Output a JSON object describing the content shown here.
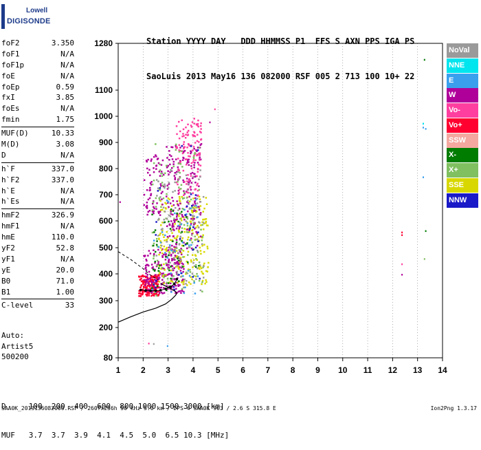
{
  "logo": {
    "line1": "Lowell",
    "line2": "DIGISONDE"
  },
  "header": {
    "labels": [
      "Station",
      "YYYY",
      "DAY",
      "DDD",
      "HHMMSS",
      "P1",
      "FFS",
      "S",
      "AXN",
      "PPS",
      "IGA",
      "PS"
    ],
    "values": [
      "SaoLuis",
      "2013",
      "May16",
      "136",
      "082000",
      "RSF",
      "005",
      "2",
      "713",
      "100",
      "10+",
      "22"
    ]
  },
  "params": {
    "group1": [
      {
        "name": "foF2",
        "value": "3.350"
      },
      {
        "name": "foF1",
        "value": "N/A"
      },
      {
        "name": "foF1p",
        "value": "N/A"
      },
      {
        "name": "foE",
        "value": "N/A"
      },
      {
        "name": "foEp",
        "value": "0.59"
      },
      {
        "name": "fxI",
        "value": "3.85"
      },
      {
        "name": "foEs",
        "value": "N/A"
      },
      {
        "name": "fmin",
        "value": "1.75"
      }
    ],
    "group2": [
      {
        "name": "MUF(D)",
        "value": "10.33"
      },
      {
        "name": "M(D)",
        "value": "3.08"
      },
      {
        "name": "D",
        "value": "N/A"
      }
    ],
    "group3": [
      {
        "name": "h`F",
        "value": "337.0"
      },
      {
        "name": "h`F2",
        "value": "337.0"
      },
      {
        "name": "h`E",
        "value": "N/A"
      },
      {
        "name": "h`Es",
        "value": "N/A"
      }
    ],
    "group4": [
      {
        "name": "hmF2",
        "value": "326.9"
      },
      {
        "name": "hmF1",
        "value": "N/A"
      },
      {
        "name": "hmE",
        "value": "110.0"
      },
      {
        "name": "yF2",
        "value": "52.8"
      },
      {
        "name": "yF1",
        "value": "N/A"
      },
      {
        "name": "yE",
        "value": "20.0"
      },
      {
        "name": "B0",
        "value": "71.0"
      },
      {
        "name": "B1",
        "value": "1.00"
      }
    ],
    "group5": [
      {
        "name": "C-level",
        "value": "33"
      }
    ]
  },
  "auto_scaling": {
    "line1": "Auto:",
    "line2": "Artist5",
    "line3": "500200"
  },
  "legend": [
    {
      "label": "NoVal",
      "color": "#9a9a9a"
    },
    {
      "label": "NNE",
      "color": "#00e5ee"
    },
    {
      "label": "E",
      "color": "#3aa0ee"
    },
    {
      "label": "W",
      "color": "#b0009a"
    },
    {
      "label": "Vo-",
      "color": "#ff3fa0"
    },
    {
      "label": "Vo+",
      "color": "#ff0030"
    },
    {
      "label": "SSW",
      "color": "#f4a8a0"
    },
    {
      "label": "X-",
      "color": "#007c00"
    },
    {
      "label": "X+",
      "color": "#80c060"
    },
    {
      "label": "SSE",
      "color": "#d8d800"
    },
    {
      "label": "NNW",
      "color": "#1a1ac8"
    }
  ],
  "footer": {
    "row1_label": "D",
    "row1_values": [
      "100",
      "200",
      "400",
      "600",
      "800",
      "1000",
      "1500",
      "3000",
      "[km]"
    ],
    "row2_label": "MUF",
    "row2_values": [
      "3.7",
      "3.7",
      "3.9",
      "4.1",
      "4.5",
      "5.0",
      "6.5",
      "10.3",
      "[MHz]"
    ],
    "file_line": "SAA0K_2013136082000.RSF / 260fx256h 50 kHz 5.0 km / DPS-4 SAA0K 903 / 2.6 S 315.8 E",
    "version": "Ion2Png 1.3.17"
  },
  "chart_data": {
    "type": "scatter",
    "title": "",
    "xlabel": "",
    "ylabel": "",
    "x_ticks": [
      1,
      2,
      3,
      4,
      5,
      6,
      7,
      8,
      9,
      10,
      11,
      12,
      13,
      14
    ],
    "y_ticks": [
      80,
      200,
      300,
      400,
      500,
      600,
      700,
      800,
      900,
      1000,
      1100,
      1280
    ],
    "xlim": [
      1,
      14
    ],
    "ylim": [
      80,
      1280
    ],
    "grid": "dotted vertical at integer frequencies",
    "ordinary_trace_points": [
      [
        1.9,
        340
      ],
      [
        2.1,
        338
      ],
      [
        2.3,
        337
      ],
      [
        2.5,
        337
      ],
      [
        2.7,
        339
      ],
      [
        2.9,
        344
      ],
      [
        3.1,
        352
      ],
      [
        3.25,
        362
      ],
      [
        3.35,
        380
      ]
    ],
    "profile_curve": [
      [
        1.0,
        220
      ],
      [
        1.5,
        240
      ],
      [
        2.0,
        258
      ],
      [
        2.5,
        272
      ],
      [
        2.9,
        288
      ],
      [
        3.15,
        306
      ],
      [
        3.3,
        320
      ],
      [
        3.35,
        327
      ],
      [
        3.3,
        334
      ],
      [
        3.15,
        342
      ],
      [
        2.95,
        352
      ],
      [
        2.7,
        364
      ]
    ],
    "dashed_profile": [
      [
        1.0,
        485
      ],
      [
        1.5,
        455
      ],
      [
        2.0,
        420
      ],
      [
        2.3,
        395
      ],
      [
        2.6,
        378
      ]
    ],
    "echo_clusters": [
      {
        "xmin": 1.8,
        "xmax": 2.6,
        "ymin": 320,
        "ymax": 400,
        "series": "Vo+",
        "count": 170
      },
      {
        "xmin": 2.0,
        "xmax": 3.6,
        "ymin": 330,
        "ymax": 500,
        "series": "W",
        "count": 220
      },
      {
        "xmin": 2.6,
        "xmax": 4.6,
        "ymin": 360,
        "ymax": 700,
        "series": "SSE",
        "count": 230
      },
      {
        "xmin": 2.9,
        "xmax": 4.3,
        "ymin": 500,
        "ymax": 900,
        "series": "W",
        "count": 200
      },
      {
        "xmin": 3.3,
        "xmax": 4.3,
        "ymin": 700,
        "ymax": 1000,
        "series": "Vo-",
        "count": 120
      },
      {
        "xmin": 2.0,
        "xmax": 2.8,
        "ymin": 620,
        "ymax": 860,
        "series": "W",
        "count": 70
      },
      {
        "xmin": 2.3,
        "xmax": 4.4,
        "ymin": 320,
        "ymax": 900,
        "series": "X+",
        "count": 120
      },
      {
        "xmin": 2.5,
        "xmax": 4.4,
        "ymin": 340,
        "ymax": 800,
        "series": "NoVal",
        "count": 110
      },
      {
        "xmin": 2.3,
        "xmax": 4.2,
        "ymin": 330,
        "ymax": 650,
        "series": "X-",
        "count": 50
      },
      {
        "xmin": 2.3,
        "xmax": 4.2,
        "ymin": 330,
        "ymax": 700,
        "series": "E",
        "count": 40
      },
      {
        "xmin": 2.3,
        "xmax": 4.3,
        "ymin": 340,
        "ymax": 900,
        "series": "NNW",
        "count": 30
      }
    ],
    "isolated_points": [
      {
        "x": 12.35,
        "y": 560,
        "series": "Vo+"
      },
      {
        "x": 12.35,
        "y": 550,
        "series": "Vo+"
      },
      {
        "x": 12.35,
        "y": 440,
        "series": "Vo-"
      },
      {
        "x": 12.35,
        "y": 400,
        "series": "W"
      },
      {
        "x": 13.25,
        "y": 1220,
        "series": "X-"
      },
      {
        "x": 13.2,
        "y": 975,
        "series": "NNE"
      },
      {
        "x": 13.2,
        "y": 960,
        "series": "E"
      },
      {
        "x": 13.3,
        "y": 955,
        "series": "E"
      },
      {
        "x": 13.2,
        "y": 770,
        "series": "E"
      },
      {
        "x": 13.3,
        "y": 565,
        "series": "X-"
      },
      {
        "x": 13.25,
        "y": 460,
        "series": "X+"
      },
      {
        "x": 2.2,
        "y": 140,
        "series": "Vo-"
      },
      {
        "x": 2.4,
        "y": 138,
        "series": "NoVal"
      },
      {
        "x": 2.95,
        "y": 130,
        "series": "E"
      },
      {
        "x": 4.85,
        "y": 1030,
        "series": "Vo-"
      },
      {
        "x": 4.65,
        "y": 980,
        "series": "W"
      },
      {
        "x": 1.05,
        "y": 675,
        "series": "W"
      }
    ]
  }
}
